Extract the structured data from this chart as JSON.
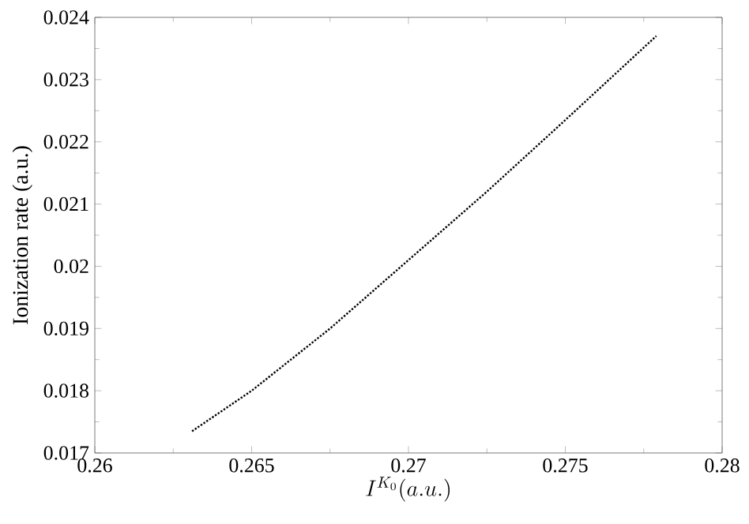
{
  "chart_data": {
    "type": "line",
    "xlabel": "I^{K_0}(a.u.)",
    "ylabel": "Ionization rate (a.u.)",
    "x": [
      0.2631,
      0.265,
      0.2675,
      0.27,
      0.2725,
      0.275,
      0.2779
    ],
    "values": [
      0.01735,
      0.018,
      0.019,
      0.0201,
      0.0212,
      0.02235,
      0.0237
    ],
    "color": "#000000",
    "line_style": "dotted",
    "marker": "none",
    "grid": false,
    "xlim": [
      0.26,
      0.28
    ],
    "xticks": [
      0.26,
      0.265,
      0.27,
      0.275,
      0.28
    ],
    "ylim": [
      0.017,
      0.024
    ],
    "yticks": [
      0.017,
      0.018,
      0.019,
      0.02,
      0.021,
      0.022,
      0.023,
      0.024
    ]
  }
}
